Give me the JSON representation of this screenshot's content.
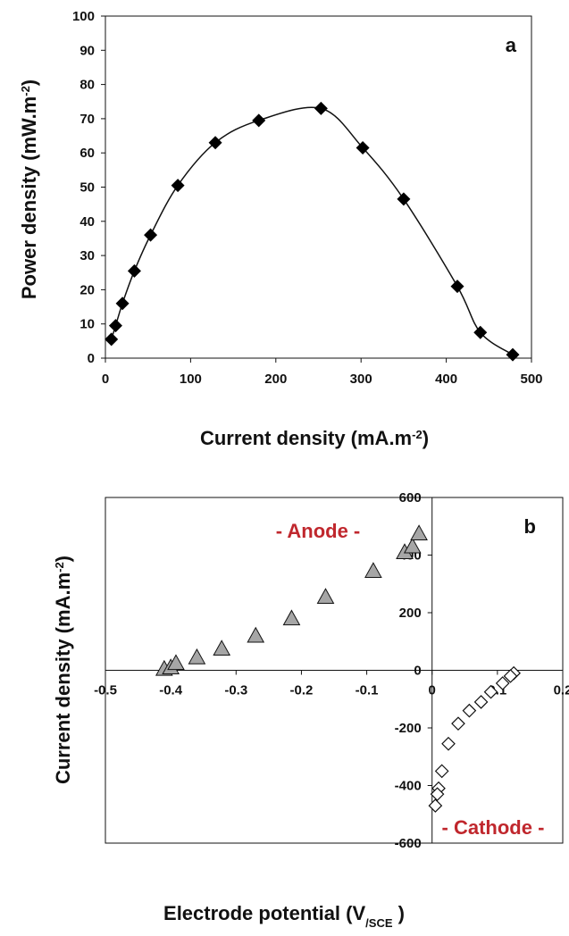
{
  "colors": {
    "axis": "#111111",
    "marker_a": "#000000",
    "anode_fill": "#a6a6a6",
    "cathode_fill": "#ffffff",
    "region_label": "#c0272d"
  },
  "chart_data": [
    {
      "type": "line",
      "panel_label": "a",
      "xlabel": "Current density (mA.m-2)",
      "ylabel": "Power density (mW.m-2)",
      "xlim": [
        0,
        500
      ],
      "ylim": [
        0,
        100
      ],
      "x_ticks": [
        0,
        100,
        200,
        300,
        400,
        500
      ],
      "y_ticks": [
        0,
        10,
        20,
        30,
        40,
        50,
        60,
        70,
        80,
        90,
        100
      ],
      "grid": false,
      "marker": "diamond-filled",
      "series": [
        {
          "x": [
            7,
            12,
            20,
            34,
            53,
            85,
            129,
            180,
            253,
            302,
            350,
            413,
            440,
            478
          ],
          "y": [
            5.5,
            9.5,
            16,
            25.5,
            36,
            50.5,
            63,
            69.5,
            73,
            61.5,
            46.5,
            21,
            7.5,
            1
          ]
        }
      ]
    },
    {
      "type": "scatter",
      "panel_label": "b",
      "xlabel": "Electrode potential (V/SCE)",
      "ylabel": "Current density (mA.m-2)",
      "xlim": [
        -0.5,
        0.2
      ],
      "ylim": [
        -600,
        600
      ],
      "x_ticks": [
        "-0.5",
        "-0.4",
        "-0.3",
        "-0.2",
        "-0.1",
        "0",
        "0.1",
        "0.2"
      ],
      "y_ticks": [
        "600",
        "400",
        "200",
        "0",
        "-200",
        "-400",
        "-600"
      ],
      "grid": false,
      "annotations": [
        "- Anode -",
        "- Cathode -"
      ],
      "series": [
        {
          "marker": "triangle-gray",
          "x": [
            -0.41,
            -0.4,
            -0.392,
            -0.36,
            -0.322,
            -0.27,
            -0.215,
            -0.163,
            -0.09,
            -0.042,
            -0.03,
            -0.02
          ],
          "y": [
            5,
            10,
            25,
            45,
            75,
            120,
            180,
            255,
            345,
            410,
            430,
            475
          ]
        },
        {
          "marker": "diamond-open",
          "x": [
            0.125,
            0.12,
            0.108,
            0.09,
            0.075,
            0.057,
            0.04,
            0.025,
            0.015,
            0.01,
            0.008,
            0.005
          ],
          "y": [
            -10,
            -20,
            -45,
            -75,
            -110,
            -140,
            -185,
            -255,
            -350,
            -410,
            -430,
            -470
          ]
        }
      ]
    }
  ]
}
